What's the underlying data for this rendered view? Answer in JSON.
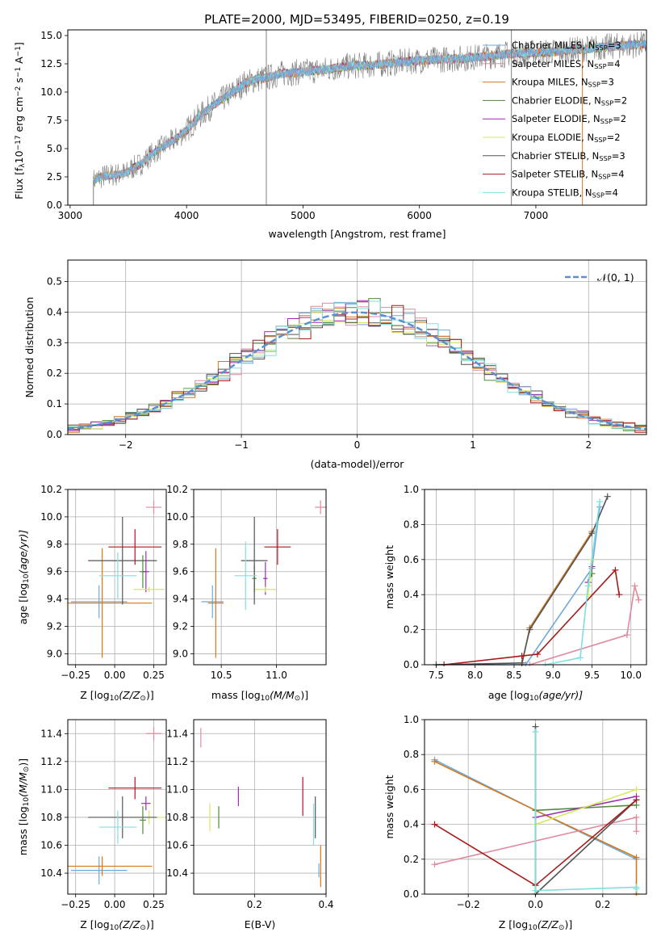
{
  "figure_title": "PLATE=2000, MJD=53495, FIBERID=0250, z=0.19",
  "colors": {
    "chabrier_miles": "#6fa8dc",
    "salpeter_miles": "#e08a9e",
    "kroupa_miles": "#d2791e",
    "chabrier_elodie": "#4f8a3f",
    "salpeter_elodie": "#9b2fb0",
    "kroupa_elodie": "#d7e85a",
    "chabrier_stelib": "#555555",
    "salpeter_stelib": "#a51b1b",
    "kroupa_stelib": "#7fe0e0",
    "gaussian": "#5b8fd0",
    "data_spectrum": "#808080",
    "grid": "#b0b0b0"
  },
  "chart_data": [
    {
      "id": "spectrum",
      "type": "line",
      "title": "PLATE=2000, MJD=53495, FIBERID=0250, z=0.19",
      "xlabel": "wavelength [Angstrom, rest frame]",
      "ylabel_parts": [
        "Flux [f",
        "λ",
        "10",
        "−17",
        " erg cm",
        "−2",
        " s",
        "−1",
        " A",
        "−1",
        "]"
      ],
      "xlim": [
        2980,
        7950
      ],
      "ylim": [
        0,
        15.5
      ],
      "xticks": [
        3000,
        4000,
        5000,
        6000,
        7000
      ],
      "xtick_labels": [
        "3000",
        "4000",
        "5000",
        "6000",
        "7000"
      ],
      "yticks": [
        0,
        2.5,
        5,
        7.5,
        10,
        12.5,
        15
      ],
      "ytick_labels": [
        "0.0",
        "2.5",
        "5.0",
        "7.5",
        "10.0",
        "12.5",
        "15.0"
      ],
      "grid": false,
      "legend_position": "top-right",
      "legend": [
        {
          "base": "Chabrier MILES, N",
          "sub": "SSP",
          "tail": "=3",
          "color_key": "chabrier_miles"
        },
        {
          "base": "Salpeter MILES, N",
          "sub": "SSP",
          "tail": "=4",
          "color_key": "salpeter_miles"
        },
        {
          "base": "Kroupa MILES, N",
          "sub": "SSP",
          "tail": "=3",
          "color_key": "kroupa_miles"
        },
        {
          "base": "Chabrier ELODIE, N",
          "sub": "SSP",
          "tail": "=2",
          "color_key": "chabrier_elodie"
        },
        {
          "base": "Salpeter ELODIE, N",
          "sub": "SSP",
          "tail": "=2",
          "color_key": "salpeter_elodie"
        },
        {
          "base": "Kroupa ELODIE, N",
          "sub": "SSP",
          "tail": "=2",
          "color_key": "kroupa_elodie"
        },
        {
          "base": "Chabrier STELIB, N",
          "sub": "SSP",
          "tail": "=3",
          "color_key": "chabrier_stelib"
        },
        {
          "base": "Salpeter STELIB, N",
          "sub": "SSP",
          "tail": "=4",
          "color_key": "salpeter_stelib"
        },
        {
          "base": "Kroupa STELIB, N",
          "sub": "SSP",
          "tail": "=4",
          "color_key": "kroupa_stelib"
        }
      ],
      "continuum_x": [
        3200,
        3300,
        3400,
        3500,
        3520,
        3600,
        3700,
        3800,
        3900,
        4000,
        4100,
        4200,
        4300,
        4400,
        4500,
        4600,
        4700,
        4800,
        4900,
        5000,
        5200,
        5400,
        5600,
        5800,
        6000,
        6200,
        6400,
        6600,
        6800,
        7000,
        7200,
        7400,
        7600,
        7900
      ],
      "continuum_y": [
        2.2,
        2.6,
        2.7,
        2.9,
        3.2,
        3.6,
        4.5,
        5.2,
        5.8,
        6.6,
        7.8,
        8.6,
        9.3,
        10.0,
        10.8,
        11.1,
        11.3,
        11.6,
        11.7,
        11.8,
        12.0,
        12.3,
        12.4,
        12.6,
        12.8,
        12.9,
        13.0,
        13.2,
        13.4,
        13.5,
        13.6,
        13.8,
        14.0,
        14.2
      ],
      "data_noise_amplitude": 1.2,
      "spikes": [
        {
          "x": 4685,
          "y_low": 0,
          "y_high": 15.5
        },
        {
          "x": 6790,
          "y_low": 0,
          "y_high": 15.5
        }
      ]
    },
    {
      "id": "residuals",
      "type": "histogram",
      "xlabel": "(data-model)/error",
      "ylabel": "Normed distribution",
      "xlim": [
        -2.5,
        2.5
      ],
      "ylim": [
        0,
        0.57
      ],
      "xticks": [
        -2,
        -1,
        0,
        1,
        2
      ],
      "xtick_labels": [
        "−2",
        "−1",
        "0",
        "1",
        "2"
      ],
      "yticks": [
        0,
        0.1,
        0.2,
        0.3,
        0.4,
        0.5
      ],
      "ytick_labels": [
        "0.0",
        "0.1",
        "0.2",
        "0.3",
        "0.4",
        "0.5"
      ],
      "grid": true,
      "legend_position": "top-right",
      "legend_label": "𝒩(0, 1)",
      "bin_width": 0.1,
      "gaussian": {
        "mean": 0,
        "sigma": 1
      }
    },
    {
      "id": "age_vs_Z",
      "type": "scatter",
      "xlabel_parts": [
        "Z [log",
        "10",
        "(Z/Z",
        "⊙",
        ")]"
      ],
      "ylabel_parts": [
        "age  [log",
        "10",
        "(age/yr)]"
      ],
      "xlim": [
        -0.3,
        0.33
      ],
      "ylim": [
        8.92,
        10.2
      ],
      "xticks": [
        -0.25,
        0,
        0.25
      ],
      "xtick_labels": [
        "−0.25",
        "0.00",
        "0.25"
      ],
      "yticks": [
        9.0,
        9.2,
        9.4,
        9.6,
        9.8,
        10.0,
        10.2
      ],
      "ytick_labels": [
        "9.0",
        "9.2",
        "9.4",
        "9.6",
        "9.8",
        "10.0",
        "10.2"
      ],
      "grid": true,
      "points": [
        {
          "color_key": "salpeter_miles",
          "x": 0.25,
          "y": 10.07,
          "xerr": 0.05,
          "yerr": 0.05
        },
        {
          "color_key": "chabrier_miles",
          "x": -0.1,
          "y": 9.38,
          "xerr": 0.18,
          "yerr": 0.12
        },
        {
          "color_key": "kroupa_miles",
          "x": -0.08,
          "y": 9.37,
          "xerr": 0.32,
          "yerr": 0.4
        },
        {
          "color_key": "chabrier_elodie",
          "x": 0.18,
          "y": 9.6,
          "xerr": 0.02,
          "yerr": 0.12
        },
        {
          "color_key": "salpeter_elodie",
          "x": 0.2,
          "y": 9.6,
          "xerr": 0.02,
          "yerr": 0.15
        },
        {
          "color_key": "kroupa_elodie",
          "x": 0.22,
          "y": 9.47,
          "xerr": 0.1,
          "yerr": 0.02
        },
        {
          "color_key": "chabrier_stelib",
          "x": 0.05,
          "y": 9.68,
          "xerr": 0.22,
          "yerr": 0.32
        },
        {
          "color_key": "salpeter_stelib",
          "x": 0.13,
          "y": 9.78,
          "xerr": 0.17,
          "yerr": 0.13
        },
        {
          "color_key": "kroupa_stelib",
          "x": 0.02,
          "y": 9.57,
          "xerr": 0.12,
          "yerr": 0.17
        }
      ]
    },
    {
      "id": "age_vs_mass",
      "type": "scatter",
      "xlabel_parts": [
        "mass [log",
        "10",
        "(M/M",
        "⊙",
        ")]"
      ],
      "xlim": [
        10.25,
        11.45
      ],
      "ylim": [
        8.92,
        10.2
      ],
      "xticks": [
        10.5,
        11.0
      ],
      "xtick_labels": [
        "10.5",
        "11.0"
      ],
      "yticks": [
        9.0,
        9.2,
        9.4,
        9.6,
        9.8,
        10.0,
        10.2
      ],
      "ytick_labels": [
        "9.0",
        "9.2",
        "9.4",
        "9.6",
        "9.8",
        "10.0",
        "10.2"
      ],
      "grid": true,
      "points": [
        {
          "color_key": "salpeter_miles",
          "x": 11.4,
          "y": 10.07,
          "xerr": 0.05,
          "yerr": 0.05
        },
        {
          "color_key": "chabrier_miles",
          "x": 10.42,
          "y": 9.38,
          "xerr": 0.1,
          "yerr": 0.12
        },
        {
          "color_key": "kroupa_miles",
          "x": 10.45,
          "y": 9.37,
          "xerr": 0.07,
          "yerr": 0.4
        },
        {
          "color_key": "chabrier_elodie",
          "x": 10.8,
          "y": 9.55,
          "xerr": 0.02,
          "yerr": 0.1
        },
        {
          "color_key": "salpeter_elodie",
          "x": 10.9,
          "y": 9.55,
          "xerr": 0.02,
          "yerr": 0.12
        },
        {
          "color_key": "kroupa_elodie",
          "x": 10.9,
          "y": 9.47,
          "xerr": 0.1,
          "yerr": 0.02
        },
        {
          "color_key": "chabrier_stelib",
          "x": 10.8,
          "y": 9.68,
          "xerr": 0.12,
          "yerr": 0.32
        },
        {
          "color_key": "salpeter_stelib",
          "x": 11.01,
          "y": 9.78,
          "xerr": 0.12,
          "yerr": 0.13
        },
        {
          "color_key": "kroupa_stelib",
          "x": 10.72,
          "y": 9.57,
          "xerr": 0.1,
          "yerr": 0.25
        }
      ]
    },
    {
      "id": "mass_weight_vs_age",
      "type": "line",
      "xlabel_parts": [
        "age  [log",
        "10",
        "(age/yr)]"
      ],
      "ylabel": "mass weight",
      "xlim": [
        7.35,
        10.2
      ],
      "ylim": [
        0,
        1.0
      ],
      "xticks": [
        7.5,
        8.0,
        8.5,
        9.0,
        9.5,
        10.0
      ],
      "xtick_labels": [
        "7.5",
        "8.0",
        "8.5",
        "9.0",
        "9.5",
        "10.0"
      ],
      "yticks": [
        0,
        0.2,
        0.4,
        0.6,
        0.8,
        1.0
      ],
      "ytick_labels": [
        "0.0",
        "0.2",
        "0.4",
        "0.6",
        "0.8",
        "1.0"
      ],
      "grid": true,
      "series": [
        {
          "color_key": "salpeter_miles",
          "x": [
            8.7,
            9.95,
            10.05,
            10.1
          ],
          "y": [
            0.0,
            0.17,
            0.45,
            0.37
          ]
        },
        {
          "color_key": "chabrier_miles",
          "x": [
            7.5,
            8.65,
            9.5,
            9.6
          ],
          "y": [
            0.0,
            0.0,
            0.55,
            0.9
          ]
        },
        {
          "color_key": "kroupa_miles",
          "x": [
            8.6,
            8.7,
            9.5
          ],
          "y": [
            0.0,
            0.21,
            0.76
          ]
        },
        {
          "color_key": "chabrier_elodie",
          "x": [
            9.45,
            9.5
          ],
          "y": [
            0.47,
            0.52
          ]
        },
        {
          "color_key": "salpeter_elodie",
          "x": [
            9.45,
            9.5
          ],
          "y": [
            0.47,
            0.56
          ]
        },
        {
          "color_key": "kroupa_elodie",
          "x": [
            9.45,
            9.5
          ],
          "y": [
            0.4,
            0.6
          ]
        },
        {
          "color_key": "chabrier_stelib",
          "x": [
            7.5,
            8.6,
            8.7,
            9.5,
            9.7
          ],
          "y": [
            0.0,
            0.01,
            0.2,
            0.75,
            0.96
          ]
        },
        {
          "color_key": "salpeter_stelib",
          "x": [
            7.6,
            8.6,
            8.8,
            9.8,
            9.85
          ],
          "y": [
            0.0,
            0.05,
            0.06,
            0.54,
            0.4
          ]
        },
        {
          "color_key": "kroupa_stelib",
          "x": [
            8.9,
            9.35,
            9.45,
            9.6
          ],
          "y": [
            0.0,
            0.04,
            0.45,
            0.93
          ]
        }
      ]
    },
    {
      "id": "mass_vs_Z",
      "type": "scatter",
      "xlabel_parts": [
        "Z [log",
        "10",
        "(Z/Z",
        "⊙",
        ")]"
      ],
      "ylabel_parts": [
        "mass [log",
        "10",
        "(M/M",
        "⊙",
        ")]"
      ],
      "xlim": [
        -0.3,
        0.33
      ],
      "ylim": [
        10.25,
        11.5
      ],
      "xticks": [
        -0.25,
        0,
        0.25
      ],
      "xtick_labels": [
        "−0.25",
        "0.00",
        "0.25"
      ],
      "yticks": [
        10.4,
        10.6,
        10.8,
        11.0,
        11.2,
        11.4
      ],
      "ytick_labels": [
        "10.4",
        "10.6",
        "10.8",
        "11.0",
        "11.2",
        "11.4"
      ],
      "grid": true,
      "points": [
        {
          "color_key": "salpeter_miles",
          "x": 0.25,
          "y": 11.4,
          "xerr": 0.05,
          "yerr": 0.05
        },
        {
          "color_key": "chabrier_miles",
          "x": -0.1,
          "y": 10.42,
          "xerr": 0.18,
          "yerr": 0.1
        },
        {
          "color_key": "kroupa_miles",
          "x": -0.08,
          "y": 10.45,
          "xerr": 0.32,
          "yerr": 0.07
        },
        {
          "color_key": "chabrier_elodie",
          "x": 0.18,
          "y": 10.78,
          "xerr": 0.02,
          "yerr": 0.1
        },
        {
          "color_key": "salpeter_elodie",
          "x": 0.2,
          "y": 10.9,
          "xerr": 0.03,
          "yerr": 0.05
        },
        {
          "color_key": "kroupa_elodie",
          "x": 0.22,
          "y": 10.8,
          "xerr": 0.1,
          "yerr": 0.05
        },
        {
          "color_key": "chabrier_stelib",
          "x": 0.05,
          "y": 10.8,
          "xerr": 0.22,
          "yerr": 0.15
        },
        {
          "color_key": "salpeter_stelib",
          "x": 0.13,
          "y": 11.01,
          "xerr": 0.17,
          "yerr": 0.08
        },
        {
          "color_key": "kroupa_stelib",
          "x": 0.02,
          "y": 10.73,
          "xerr": 0.12,
          "yerr": 0.12
        }
      ]
    },
    {
      "id": "mass_vs_EBV",
      "type": "scatter",
      "xlabel": "E(B-V)",
      "xlim": [
        0.03,
        0.4
      ],
      "ylim": [
        10.25,
        11.5
      ],
      "xticks": [
        0.2,
        0.4
      ],
      "xtick_labels": [
        "0.2",
        "0.4"
      ],
      "yticks": [
        10.4,
        10.6,
        10.8,
        11.0,
        11.2,
        11.4
      ],
      "ytick_labels": [
        "10.4",
        "10.6",
        "10.8",
        "11.0",
        "11.2",
        "11.4"
      ],
      "grid": true,
      "points": [
        {
          "color_key": "salpeter_miles",
          "x": 0.05,
          "y": 11.37,
          "xerr": 0,
          "yerr": 0.07
        },
        {
          "color_key": "chabrier_miles",
          "x": 0.38,
          "y": 10.42,
          "xerr": 0,
          "yerr": 0.05
        },
        {
          "color_key": "kroupa_miles",
          "x": 0.385,
          "y": 10.45,
          "xerr": 0,
          "yerr": 0.15
        },
        {
          "color_key": "chabrier_elodie",
          "x": 0.1,
          "y": 10.8,
          "xerr": 0,
          "yerr": 0.08
        },
        {
          "color_key": "salpeter_elodie",
          "x": 0.155,
          "y": 10.95,
          "xerr": 0,
          "yerr": 0.07
        },
        {
          "color_key": "kroupa_elodie",
          "x": 0.075,
          "y": 10.8,
          "xerr": 0,
          "yerr": 0.1
        },
        {
          "color_key": "chabrier_stelib",
          "x": 0.37,
          "y": 10.8,
          "xerr": 0,
          "yerr": 0.15
        },
        {
          "color_key": "salpeter_stelib",
          "x": 0.335,
          "y": 10.95,
          "xerr": 0,
          "yerr": 0.14
        },
        {
          "color_key": "kroupa_stelib",
          "x": 0.365,
          "y": 10.75,
          "xerr": 0,
          "yerr": 0.15
        }
      ]
    },
    {
      "id": "mass_weight_vs_Z",
      "type": "line",
      "xlabel_parts": [
        "Z [log",
        "10",
        "(Z/Z",
        "⊙",
        ")]"
      ],
      "ylabel": "mass weight",
      "xlim": [
        -0.33,
        0.33
      ],
      "ylim": [
        0,
        1.0
      ],
      "xticks": [
        -0.2,
        0,
        0.2
      ],
      "xtick_labels": [
        "−0.2",
        "0.0",
        "0.2"
      ],
      "yticks": [
        0,
        0.2,
        0.4,
        0.6,
        0.8,
        1.0
      ],
      "ytick_labels": [
        "0.0",
        "0.2",
        "0.4",
        "0.6",
        "0.8",
        "1.0"
      ],
      "grid": true,
      "series": [
        {
          "color_key": "chabrier_miles",
          "x": [
            -0.3,
            0.0,
            0.3
          ],
          "y": [
            0.77,
            0.48,
            0.2
          ]
        },
        {
          "color_key": "kroupa_miles",
          "x": [
            -0.3,
            0.0,
            0.3,
            0.3
          ],
          "y": [
            0.76,
            0.48,
            0.21,
            0.0
          ]
        },
        {
          "color_key": "salpeter_miles",
          "x": [
            -0.3,
            0.3,
            0.3
          ],
          "y": [
            0.17,
            0.44,
            0.36
          ]
        },
        {
          "color_key": "chabrier_elodie",
          "x": [
            0.0,
            0.3
          ],
          "y": [
            0.48,
            0.51
          ]
        },
        {
          "color_key": "salpeter_elodie",
          "x": [
            0.0,
            0.3
          ],
          "y": [
            0.44,
            0.56
          ]
        },
        {
          "color_key": "kroupa_elodie",
          "x": [
            0.0,
            0.3
          ],
          "y": [
            0.4,
            0.6
          ]
        },
        {
          "color_key": "chabrier_stelib",
          "x": [
            0.0,
            0.0,
            0.3
          ],
          "y": [
            0.96,
            0.0,
            0.54
          ]
        },
        {
          "color_key": "salpeter_stelib",
          "x": [
            -0.3,
            0.0,
            0.3
          ],
          "y": [
            0.4,
            0.05,
            0.54
          ]
        },
        {
          "color_key": "kroupa_stelib",
          "x": [
            0.0,
            0.0,
            0.3,
            0.3
          ],
          "y": [
            0.93,
            0.02,
            0.04,
            0.03
          ]
        }
      ]
    }
  ]
}
